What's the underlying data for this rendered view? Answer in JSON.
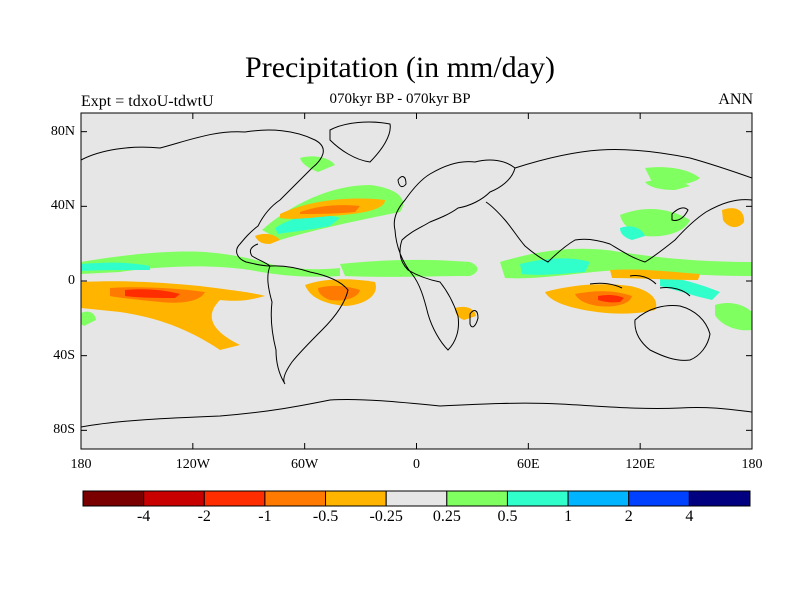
{
  "title": "Precipitation (in mm/day)",
  "subtitle": "070kyr BP - 070kyr BP",
  "left_label": "Expt = tdxoU-tdwtU",
  "right_label": "ANN",
  "colors": {
    "background": "#e6e6e6",
    "coast": "#000000",
    "levels": [
      "#7a0000",
      "#c80000",
      "#ff2d00",
      "#ff7a00",
      "#ffb400",
      "#e6e6e6",
      "#80ff60",
      "#30ffcc",
      "#00b4ff",
      "#0040ff",
      "#000080"
    ]
  },
  "map": {
    "projection": "cylindrical-equidistant",
    "lon_range": [
      -180,
      180
    ],
    "lat_range": [
      -90,
      90
    ],
    "y_ticks": [
      {
        "value": 80,
        "label": "80N"
      },
      {
        "value": 40,
        "label": "40N"
      },
      {
        "value": 0,
        "label": "0"
      },
      {
        "value": -40,
        "label": "40S"
      },
      {
        "value": -80,
        "label": "80S"
      }
    ],
    "x_ticks": [
      {
        "value": -180,
        "label": "180"
      },
      {
        "value": -120,
        "label": "120W"
      },
      {
        "value": -60,
        "label": "60W"
      },
      {
        "value": 0,
        "label": "0"
      },
      {
        "value": 60,
        "label": "60E"
      },
      {
        "value": 120,
        "label": "120E"
      },
      {
        "value": 180,
        "label": "180"
      }
    ]
  },
  "colorbar": {
    "labels": [
      "-4",
      "-2",
      "-1",
      "-0.5",
      "-0.25",
      "0.25",
      "0.5",
      "1",
      "2",
      "4"
    ]
  }
}
